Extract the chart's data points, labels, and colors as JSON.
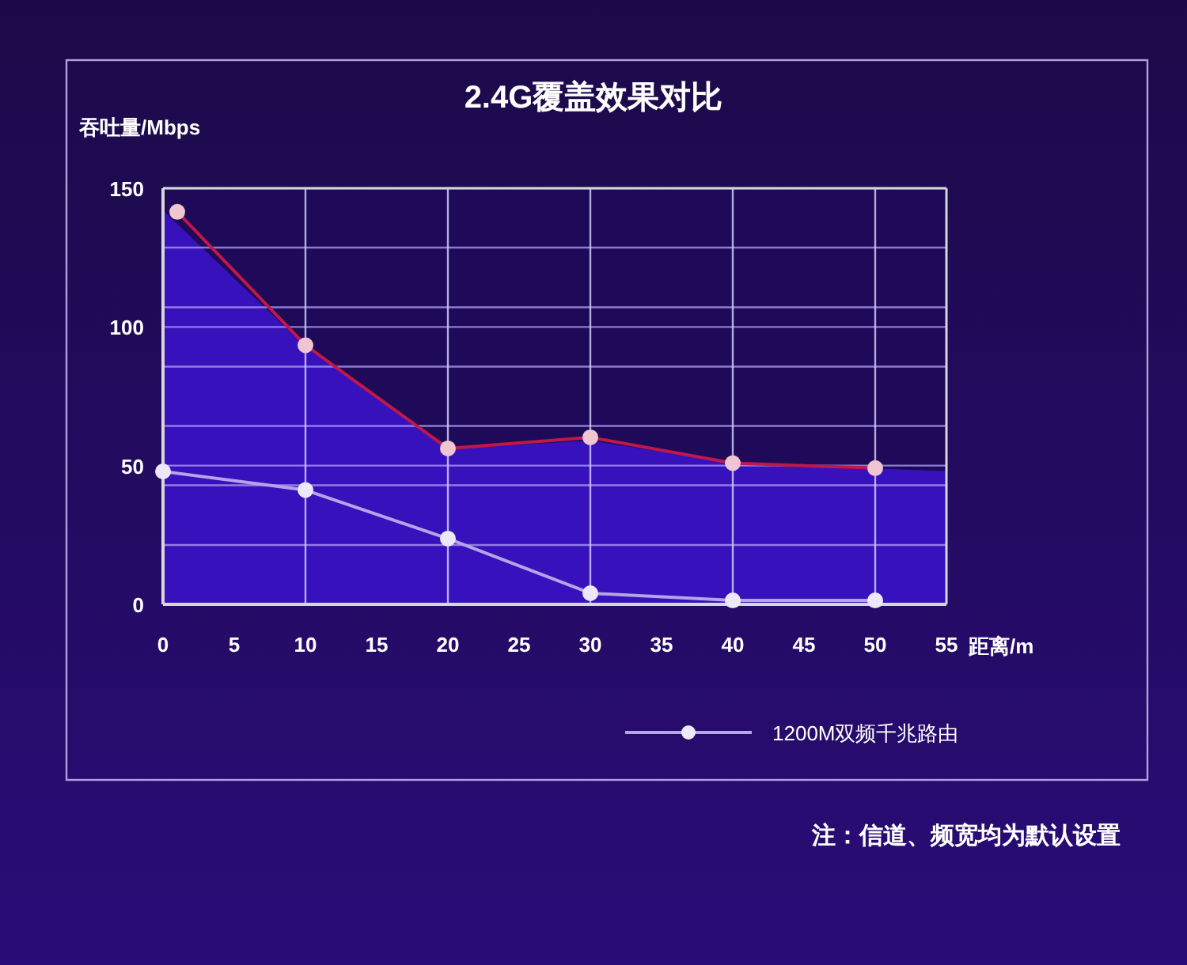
{
  "chart_data": {
    "type": "line",
    "title": "2.4G覆盖效果对比",
    "xlabel": "距离/m",
    "ylabel": "吞吐量/Mbps",
    "xlim": [
      0,
      55
    ],
    "xticks": [
      0,
      5,
      10,
      15,
      20,
      25,
      30,
      35,
      40,
      45,
      50,
      55
    ],
    "ylim": [
      0,
      150
    ],
    "yticks": [
      0,
      {
        "value": 21.4,
        "label": null
      },
      {
        "value": 42.9,
        "label": null
      },
      50,
      {
        "value": 64.3,
        "label": null
      },
      {
        "value": 85.7,
        "label": null
      },
      100,
      {
        "value": 107.1,
        "label": null
      },
      {
        "value": 128.6,
        "label": null
      },
      150
    ],
    "grid": true,
    "legend": "bottom",
    "marker": "circle",
    "series": [
      {
        "type": "area",
        "color": "#3a12c8",
        "x": [
          0,
          10,
          20,
          30,
          40,
          50,
          55
        ],
        "values": [
          142,
          93,
          56,
          59,
          51,
          49,
          48
        ],
        "marker": "none"
      },
      {
        "color": "#c01848",
        "x": [
          1,
          10,
          20,
          30,
          40,
          50
        ],
        "values": [
          141.5,
          93.4,
          56.2,
          60.2,
          50.9,
          49.1
        ]
      },
      {
        "name": "1200M双频千兆路由",
        "color": "#b4a4e8",
        "x": [
          0,
          10,
          20,
          30,
          40,
          50
        ],
        "values": [
          47.9,
          41.2,
          23.7,
          4,
          1.4,
          1.4
        ]
      }
    ],
    "annotations": [
      "注：信道、频宽均为默认设置"
    ]
  }
}
